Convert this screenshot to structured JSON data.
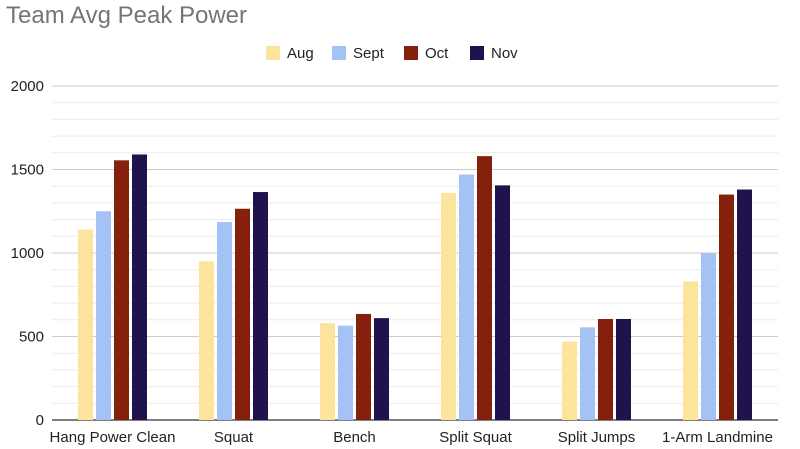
{
  "chart_data": {
    "type": "bar",
    "title": "Team Avg Peak Power",
    "xlabel": "",
    "ylabel": "",
    "ylim": [
      0,
      2000
    ],
    "yticks": [
      0,
      500,
      1000,
      1500,
      2000
    ],
    "grid": true,
    "legend_position": "top-center",
    "categories": [
      "Hang Power Clean",
      "Squat",
      "Bench",
      "Split Squat",
      "Split Jumps",
      "1-Arm Landmine"
    ],
    "series": [
      {
        "name": "Aug",
        "color": "#FDE49C",
        "values": [
          1140,
          950,
          580,
          1360,
          470,
          830
        ]
      },
      {
        "name": "Sept",
        "color": "#A4C2F4",
        "values": [
          1250,
          1185,
          565,
          1470,
          555,
          1000
        ]
      },
      {
        "name": "Oct",
        "color": "#85200C",
        "values": [
          1555,
          1265,
          635,
          1580,
          605,
          1350
        ]
      },
      {
        "name": "Nov",
        "color": "#20124D",
        "values": [
          1590,
          1365,
          610,
          1405,
          605,
          1380
        ]
      }
    ]
  }
}
